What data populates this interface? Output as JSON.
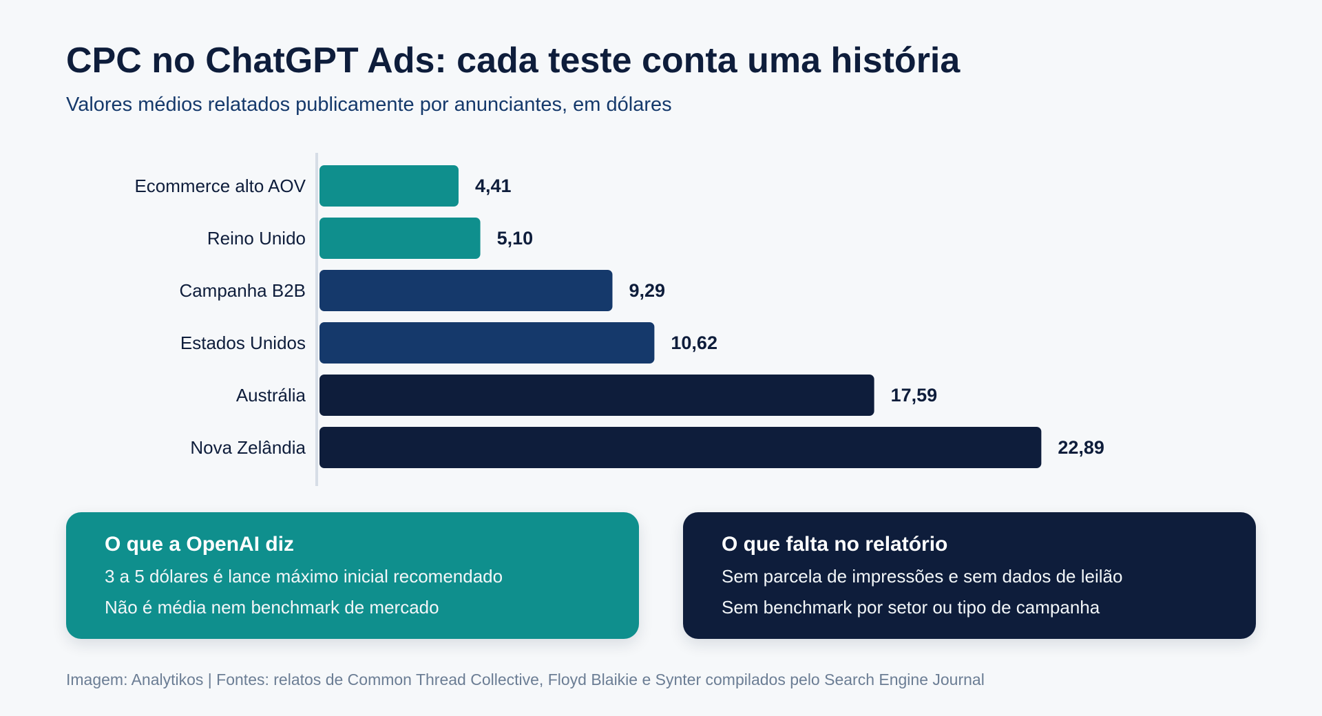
{
  "chart_data": {
    "type": "bar",
    "orientation": "horizontal",
    "title": "CPC no ChatGPT Ads: cada teste conta uma história",
    "subtitle": "Valores médios relatados publicamente por anunciantes, em dólares",
    "categories": [
      "Ecommerce alto AOV",
      "Reino Unido",
      "Campanha B2B",
      "Estados Unidos",
      "Austrália",
      "Nova Zelândia"
    ],
    "values": [
      4.41,
      5.1,
      9.29,
      10.62,
      17.59,
      22.89
    ],
    "value_labels": [
      "4,41",
      "5,10",
      "9,29",
      "10,62",
      "17,59",
      "22,89"
    ],
    "colors": [
      "#0f8f8d",
      "#0f8f8d",
      "#15396b",
      "#15396b",
      "#0e1d3b",
      "#0e1d3b"
    ],
    "xlim": [
      0,
      25
    ],
    "grid": false,
    "legend": "none"
  },
  "cards": [
    {
      "title": "O que a OpenAI diz",
      "lines": [
        "3 a 5 dólares é lance máximo inicial recomendado",
        "Não é média nem benchmark de mercado"
      ],
      "color": "#0f8f8d"
    },
    {
      "title": "O que falta no relatório",
      "lines": [
        "Sem parcela de impressões e sem dados de leilão",
        "Sem benchmark por setor ou tipo de campanha"
      ],
      "color": "#0e1d3b"
    }
  ],
  "footer": "Imagem: Analytikos | Fontes: relatos de Common Thread Collective, Floyd Blaikie e Synter compilados pelo Search Engine Journal"
}
